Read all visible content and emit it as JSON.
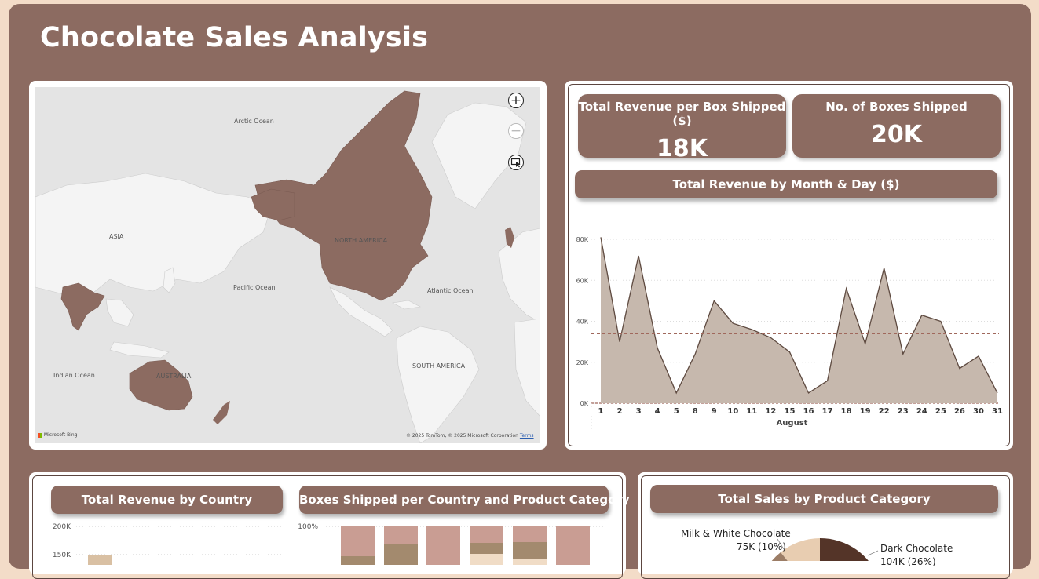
{
  "title": "Chocolate Sales Analysis",
  "map": {
    "labels": {
      "arctic": "Arctic Ocean",
      "asia": "ASIA",
      "north_america": "NORTH AMERICA",
      "pacific": "Pacific Ocean",
      "atlantic": "Atlantic Ocean",
      "south_america": "SOUTH AMERICA",
      "indian": "Indian Ocean",
      "australia": "AUSTRALIA"
    },
    "zoom_in": "+",
    "zoom_out": "−",
    "provider": "Microsoft Bing",
    "copyright": "© 2025 TomTom, © 2025 Microsoft Corporation",
    "terms": "Terms",
    "highlight_color": "#8c6b61"
  },
  "kpis": [
    {
      "label": "Total Revenue per Box Shipped ($)",
      "value": "18K"
    },
    {
      "label": "No. of Boxes Shipped",
      "value": "20K"
    }
  ],
  "line_chart_title": "Total Revenue by Month & Day ($)",
  "bottom": {
    "country_title": "Total Revenue by Country",
    "boxes_title": "Boxes Shipped per Country and Product Category",
    "category_title": "Total Sales by Product Category"
  },
  "pie_labels": {
    "milk_name": "Milk & White Chocolate",
    "milk_value": "75K (10%)",
    "dark_name": "Dark Chocolate",
    "dark_value": "104K (26%)"
  },
  "chart_data": [
    {
      "type": "area",
      "title": "Total Revenue by Month & Day ($)",
      "xlabel": "August",
      "ylabel": "",
      "categories": [
        "1",
        "2",
        "3",
        "4",
        "5",
        "8",
        "9",
        "10",
        "11",
        "12",
        "15",
        "16",
        "17",
        "18",
        "19",
        "22",
        "23",
        "24",
        "25",
        "26",
        "30",
        "31"
      ],
      "values": [
        81000,
        30000,
        72000,
        27000,
        5000,
        24000,
        50000,
        39000,
        36000,
        32000,
        25000,
        5000,
        11000,
        56000,
        29000,
        66000,
        24000,
        43000,
        40000,
        17000,
        23000,
        5000
      ],
      "average": 34000,
      "yticks": [
        "0K",
        "20K",
        "40K",
        "60K",
        "80K"
      ],
      "ylim": [
        0,
        85000
      ],
      "grid": true,
      "colors": {
        "fill": "#c6b8ad",
        "line": "#5e4a40",
        "avg": "#a0685c"
      }
    },
    {
      "type": "bar",
      "title": "Total Revenue by Country",
      "yticks": [
        "150K",
        "200K"
      ],
      "partial": true,
      "colors": {
        "bar": "#d9c0a3"
      }
    },
    {
      "type": "bar",
      "title": "Boxes Shipped per Country and Product Category",
      "stacked": true,
      "yticks": [
        "100%"
      ],
      "partial": true,
      "colors": {
        "rose": "#c99d93",
        "brown": "#a38a6e",
        "cream": "#f0dcc6"
      }
    },
    {
      "type": "pie",
      "title": "Total Sales by Product Category",
      "labels": [
        "Milk & White Chocolate",
        "Dark Chocolate"
      ],
      "display_values": [
        "75K (10%)",
        "104K (26%)"
      ],
      "values": [
        75000,
        104000
      ],
      "percent": [
        10,
        26
      ],
      "partial": true,
      "colors": {
        "dark": "#543428",
        "milk": "#e8cdb1",
        "mid": "#9c7d66"
      }
    }
  ]
}
